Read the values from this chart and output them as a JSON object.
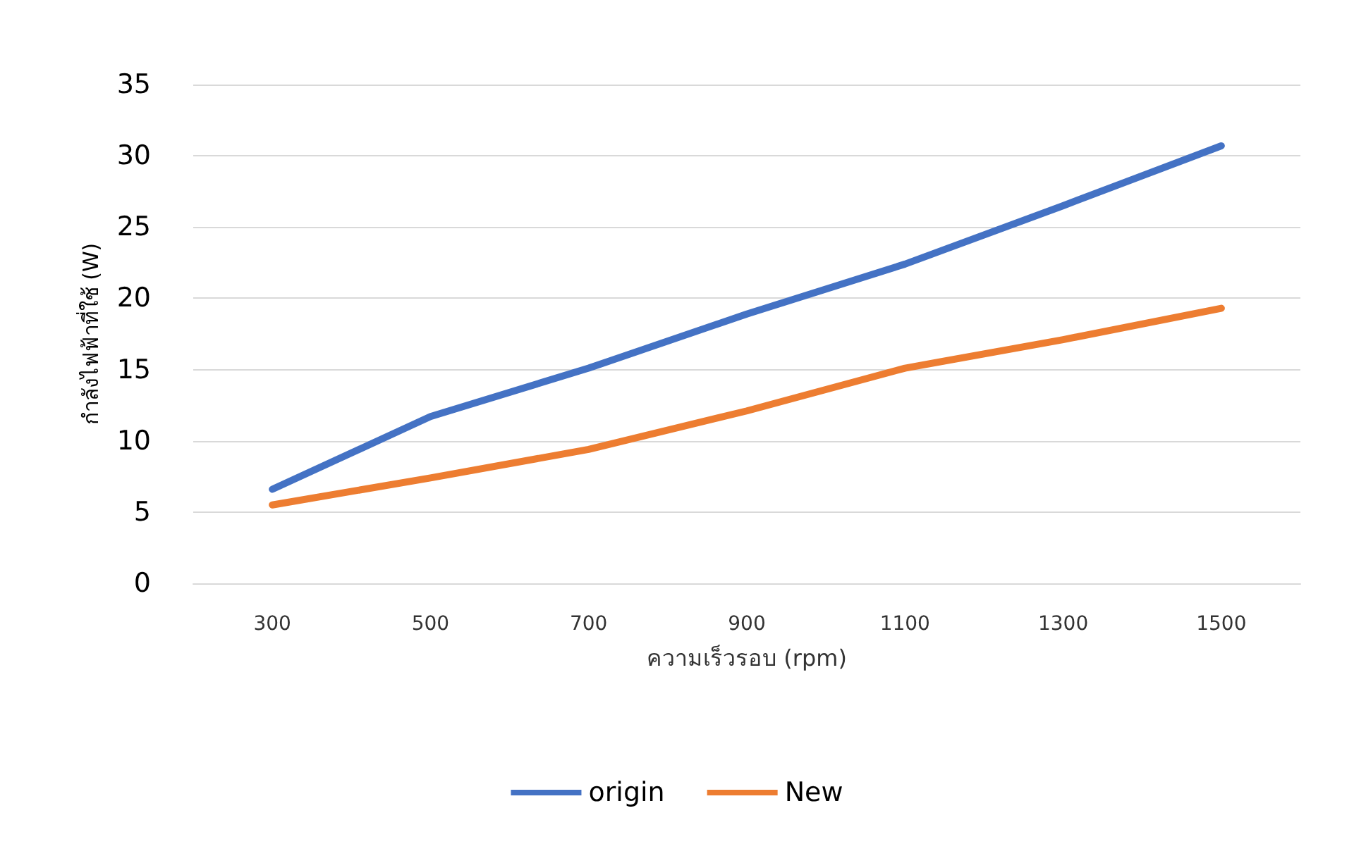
{
  "chart_data": {
    "type": "line",
    "xlabel": "ความเร็วรอบ (rpm)",
    "ylabel": "กำลังไฟฟ้าที่ใช้ (W)",
    "categories": [
      "300",
      "500",
      "700",
      "900",
      "1100",
      "1300",
      "1500"
    ],
    "series": [
      {
        "name": "origin",
        "color": "#4472c4",
        "values": [
          6.6,
          11.7,
          15.1,
          18.9,
          22.4,
          26.5,
          30.7
        ]
      },
      {
        "name": "New",
        "color": "#ed7d31",
        "values": [
          5.5,
          7.4,
          9.4,
          12.1,
          15.1,
          17.1,
          19.3
        ]
      }
    ],
    "ylim": [
      0,
      35
    ],
    "yticks": [
      0,
      5,
      10,
      15,
      20,
      25,
      30,
      35
    ],
    "grid": "y",
    "legend": "bottom",
    "marker": "none",
    "line_style": "solid"
  }
}
